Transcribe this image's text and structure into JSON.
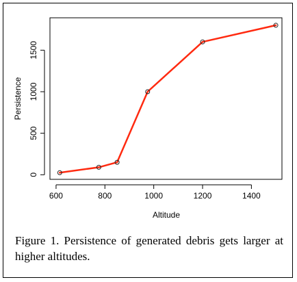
{
  "chart_data": {
    "type": "line",
    "x": [
      615,
      775,
      850,
      975,
      1200,
      1500
    ],
    "series": [
      {
        "values": [
          25,
          90,
          150,
          1000,
          1600,
          1800
        ]
      }
    ],
    "xlabel": "Altitude",
    "ylabel": "Persistence",
    "xlim": [
      575,
      1525
    ],
    "ylim": [
      -55,
      1890
    ],
    "xticks": [
      600,
      800,
      1000,
      1200,
      1400
    ],
    "yticks": [
      0,
      500,
      1000,
      1500
    ],
    "grid": false,
    "line_color": "#ff2a10",
    "marker_color": "#222222"
  },
  "caption": "Figure 1. Persistence of generated debris gets larger at higher altitudes."
}
